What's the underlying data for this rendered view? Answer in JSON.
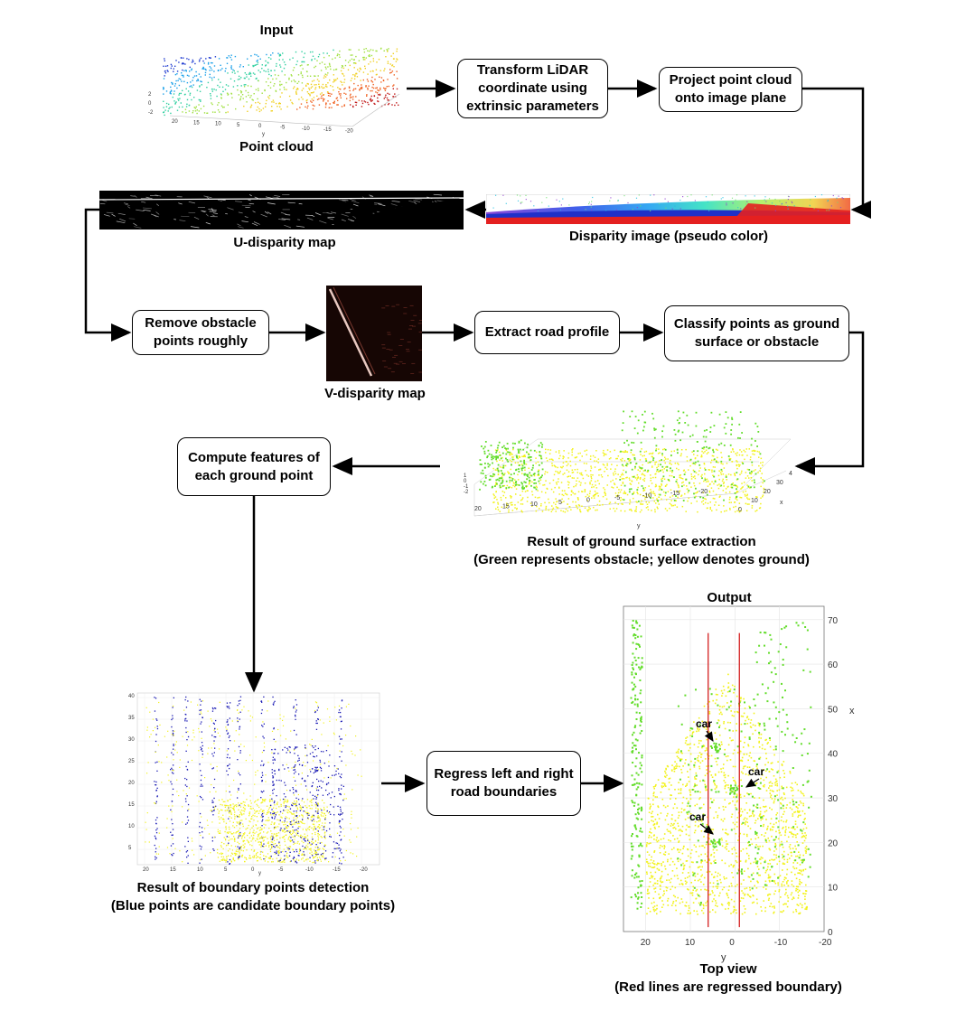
{
  "boxes": {
    "transform": "Transform LiDAR\ncoordinate using\nextrinsic parameters",
    "project": "Project point cloud\nonto image plane",
    "remove": "Remove obstacle\npoints roughly",
    "extract": "Extract road profile",
    "classify": "Classify points as ground\nsurface or obstacle",
    "compute": "Compute features of\neach ground point",
    "regress": "Regress left and right\nroad boundaries"
  },
  "labels": {
    "input": "Input",
    "point_cloud": "Point cloud",
    "u_disparity": "U-disparity map",
    "disparity_image": "Disparity image (pseudo color)",
    "v_disparity": "V-disparity map",
    "ground_result": "Result of ground surface extraction\n(Green represents obstacle; yellow denotes ground)",
    "boundary_result": "Result of boundary points detection\n(Blue points are candidate boundary points)",
    "output": "Output",
    "top_view": "Top view\n(Red lines are regressed boundary)"
  },
  "top_view_plot": {
    "x_axis_label": "y",
    "y_axis_label": "x",
    "x_ticks": [
      "20",
      "10",
      "0",
      "-10",
      "-20"
    ],
    "y_ticks": [
      "0",
      "10",
      "20",
      "30",
      "40",
      "50",
      "60",
      "70"
    ],
    "annotations": [
      "car",
      "car",
      "car"
    ]
  },
  "point_cloud_plot": {
    "x_ticks": [
      "20",
      "15",
      "10",
      "5",
      "0",
      "-5",
      "-10",
      "-15",
      "-20"
    ],
    "x_axis_label": "y",
    "z_ticks": [
      "2",
      "0",
      "-2"
    ]
  },
  "ground_plot": {
    "x_ticks": [
      "20",
      "15",
      "10",
      "5",
      "0",
      "-5",
      "-10",
      "-15",
      "-20"
    ],
    "x_axis_label": "y",
    "side_ticks": [
      "4",
      "30",
      "20",
      "10",
      "0"
    ],
    "side_axis_label": "x",
    "z_ticks": [
      "1",
      "0",
      "-1",
      "-2"
    ]
  },
  "boundary_plot": {
    "x_ticks": [
      "20",
      "15",
      "10",
      "5",
      "0",
      "-5",
      "-10",
      "-15",
      "-20"
    ],
    "y_ticks": [
      "40",
      "35",
      "30",
      "25",
      "20",
      "15",
      "10",
      "5"
    ],
    "x_axis_label": "y"
  },
  "colors": {
    "ground": "#f2f21a",
    "obstacle": "#63dd2b",
    "boundary_candidate": "#1a1ab4",
    "regressed_boundary": "#d42020",
    "arrow": "#000000"
  }
}
